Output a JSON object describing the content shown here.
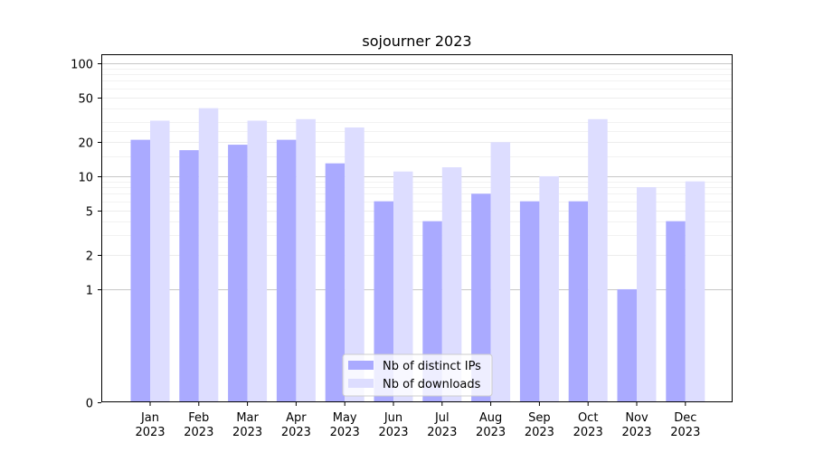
{
  "chart_data": {
    "type": "bar",
    "title": "sojourner 2023",
    "xlabel": "",
    "ylabel": "",
    "yscale": "symlog",
    "ylim": [
      0,
      120
    ],
    "yticks": [
      0,
      1,
      2,
      5,
      10,
      20,
      50,
      100
    ],
    "categories": [
      [
        "Jan",
        "2023"
      ],
      [
        "Feb",
        "2023"
      ],
      [
        "Mar",
        "2023"
      ],
      [
        "Apr",
        "2023"
      ],
      [
        "May",
        "2023"
      ],
      [
        "Jun",
        "2023"
      ],
      [
        "Jul",
        "2023"
      ],
      [
        "Aug",
        "2023"
      ],
      [
        "Sep",
        "2023"
      ],
      [
        "Oct",
        "2023"
      ],
      [
        "Nov",
        "2023"
      ],
      [
        "Dec",
        "2023"
      ]
    ],
    "series": [
      {
        "name": "Nb of distinct IPs",
        "color": "#aaaaff",
        "values": [
          21,
          17,
          19,
          21,
          13,
          6,
          4,
          7,
          6,
          6,
          1,
          4
        ]
      },
      {
        "name": "Nb of downloads",
        "color": "#ddddff",
        "values": [
          31,
          40,
          31,
          32,
          27,
          11,
          12,
          20,
          10,
          32,
          8,
          9
        ]
      }
    ],
    "grid": true,
    "legend_position": "lower-center"
  }
}
